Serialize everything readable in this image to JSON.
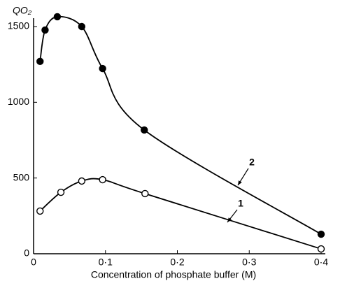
{
  "chart_data": {
    "type": "line",
    "x_label": "Concentration of phosphate buffer (M)",
    "y_label": "QO₂",
    "xlim": [
      0,
      0.4
    ],
    "ylim": [
      0,
      1500
    ],
    "xticks": [
      0,
      {
        "value": 0.1,
        "label": "0·1"
      },
      {
        "value": 0.2,
        "label": "0·2"
      },
      {
        "value": 0.3,
        "label": "0·3"
      },
      {
        "value": 0.4,
        "label": "0·4"
      }
    ],
    "yticks": [
      0,
      500,
      1000,
      1500
    ],
    "series": [
      {
        "name": "2",
        "color": "#000",
        "marker": "filled",
        "x": [
          0.009,
          0.016,
          0.033,
          0.067,
          0.096,
          0.154,
          0.4
        ],
        "values": [
          1270,
          1477,
          1565,
          1500,
          1223,
          817,
          129
        ]
      },
      {
        "name": "1",
        "color": "#000",
        "marker": "open",
        "x": [
          0.009,
          0.038,
          0.067,
          0.096,
          0.155,
          0.4
        ],
        "values": [
          282,
          406,
          480,
          489,
          397,
          32
        ]
      }
    ]
  }
}
